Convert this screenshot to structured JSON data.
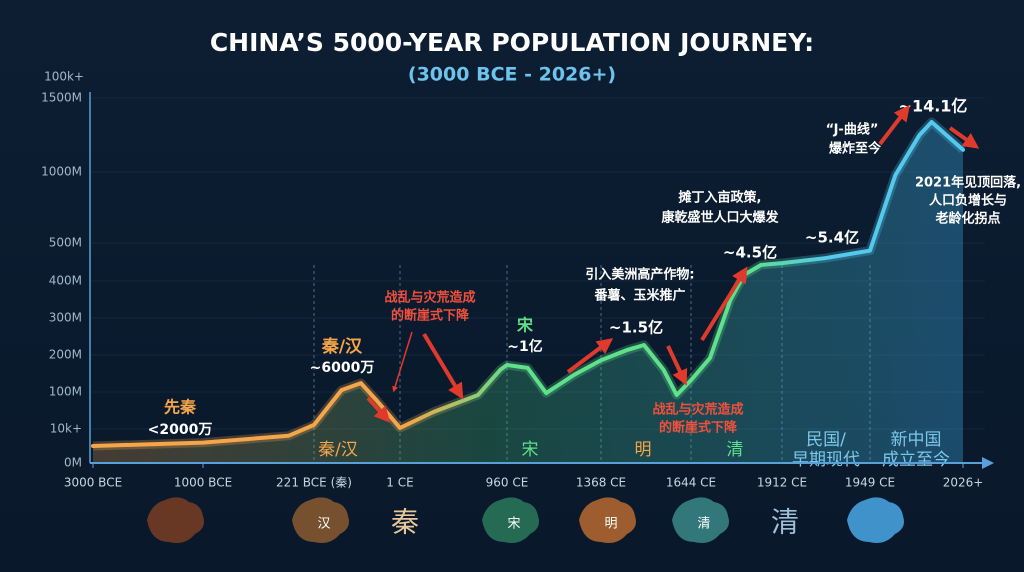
{
  "chart_data": {
    "type": "line",
    "title": "CHINA’S 5000-YEAR POPULATION JOURNEY:",
    "subtitle": "(3000 BCE - 2026+)",
    "y_axis_label": "100k+",
    "yticks": [
      {
        "value": 0,
        "label": "0M"
      },
      {
        "value": 0.01,
        "label": "10k+"
      },
      {
        "value": 100,
        "label": "100M"
      },
      {
        "value": 200,
        "label": "200M"
      },
      {
        "value": 300,
        "label": "300M"
      },
      {
        "value": 400,
        "label": "400M"
      },
      {
        "value": 500,
        "label": "500M"
      },
      {
        "value": 1000,
        "label": "1000M"
      },
      {
        "value": 1500,
        "label": "1500M"
      }
    ],
    "xticks": [
      {
        "value": -3000,
        "label": "3000 BCE"
      },
      {
        "value": -1000,
        "label": "1000 BCE"
      },
      {
        "value": -221,
        "label": "221 BCE (秦)"
      },
      {
        "value": 1,
        "label": "1 CE"
      },
      {
        "value": 960,
        "label": "960 CE"
      },
      {
        "value": 1368,
        "label": "1368 CE"
      },
      {
        "value": 1644,
        "label": "1644 CE"
      },
      {
        "value": 1912,
        "label": "1912 CE"
      },
      {
        "value": 1949,
        "label": "1949 CE"
      },
      {
        "value": 2026,
        "label": "2026+"
      }
    ],
    "series": [
      {
        "x": [
          -3000,
          -1000,
          -400,
          -221,
          -150,
          -100,
          -60,
          1,
          300,
          700,
          900,
          960,
          1050,
          1130,
          1250,
          1368,
          1450,
          1500,
          1560,
          1600,
          1644,
          1700,
          1760,
          1800,
          1850,
          1912,
          1930,
          1949,
          1970,
          1990,
          2000,
          2015,
          2026
        ],
        "values": [
          0.005,
          0.006,
          0.008,
          11,
          105,
          124,
          78,
          3,
          46,
          92,
          160,
          173,
          165,
          97,
          146,
          186,
          214,
          227,
          160,
          92,
          132,
          192,
          349,
          416,
          442,
          447,
          460,
          480,
          979,
          1250,
          1338,
          1230,
          1150
        ]
      }
    ],
    "annotations": [
      "先秦",
      "<2000万",
      "秦/汉",
      "~6000万",
      "战乱与灾荒造成",
      "的断崖式下降",
      "宋",
      "~1亿",
      "引入美洲高产作物:",
      "番薯、玉米推广",
      "~1.5亿",
      "战乱与灾荒造成",
      "的断崖式下降",
      "摊丁入亩政策,",
      "康乾盛世人口大爆发",
      "~4.5亿",
      "~5.4亿",
      "“J-曲线”",
      "爆炸至今",
      "~14.1亿",
      "2021年见顶回落,",
      "人口负增长与",
      "老龄化拐点"
    ],
    "eras": [
      "秦/汉",
      "宋",
      "明",
      "清",
      "民国/",
      "早期现代",
      "新中国",
      "成立至今"
    ],
    "map_labels": [
      "汉",
      "宋",
      "明",
      "清"
    ],
    "glyphs": [
      "秦",
      "清"
    ]
  }
}
